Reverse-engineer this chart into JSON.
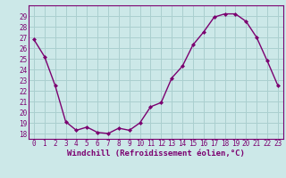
{
  "x": [
    0,
    1,
    2,
    3,
    4,
    5,
    6,
    7,
    8,
    9,
    10,
    11,
    12,
    13,
    14,
    15,
    16,
    17,
    18,
    19,
    20,
    21,
    22,
    23
  ],
  "y": [
    26.8,
    25.2,
    22.5,
    19.1,
    18.3,
    18.6,
    18.1,
    18.0,
    18.5,
    18.3,
    19.0,
    20.5,
    20.9,
    23.2,
    24.3,
    26.3,
    27.5,
    28.9,
    29.2,
    29.2,
    28.5,
    27.0,
    24.8,
    22.5
  ],
  "line_color": "#7b0070",
  "marker": "D",
  "marker_size": 2,
  "bg_color": "#cce8e8",
  "grid_color": "#aacfcf",
  "xlabel": "Windchill (Refroidissement éolien,°C)",
  "xlim": [
    -0.5,
    23.5
  ],
  "ylim": [
    17.5,
    30.0
  ],
  "yticks": [
    18,
    19,
    20,
    21,
    22,
    23,
    24,
    25,
    26,
    27,
    28,
    29
  ],
  "xticks": [
    0,
    1,
    2,
    3,
    4,
    5,
    6,
    7,
    8,
    9,
    10,
    11,
    12,
    13,
    14,
    15,
    16,
    17,
    18,
    19,
    20,
    21,
    22,
    23
  ],
  "xlabel_fontsize": 6.5,
  "tick_fontsize": 5.5,
  "line_width": 1.0
}
